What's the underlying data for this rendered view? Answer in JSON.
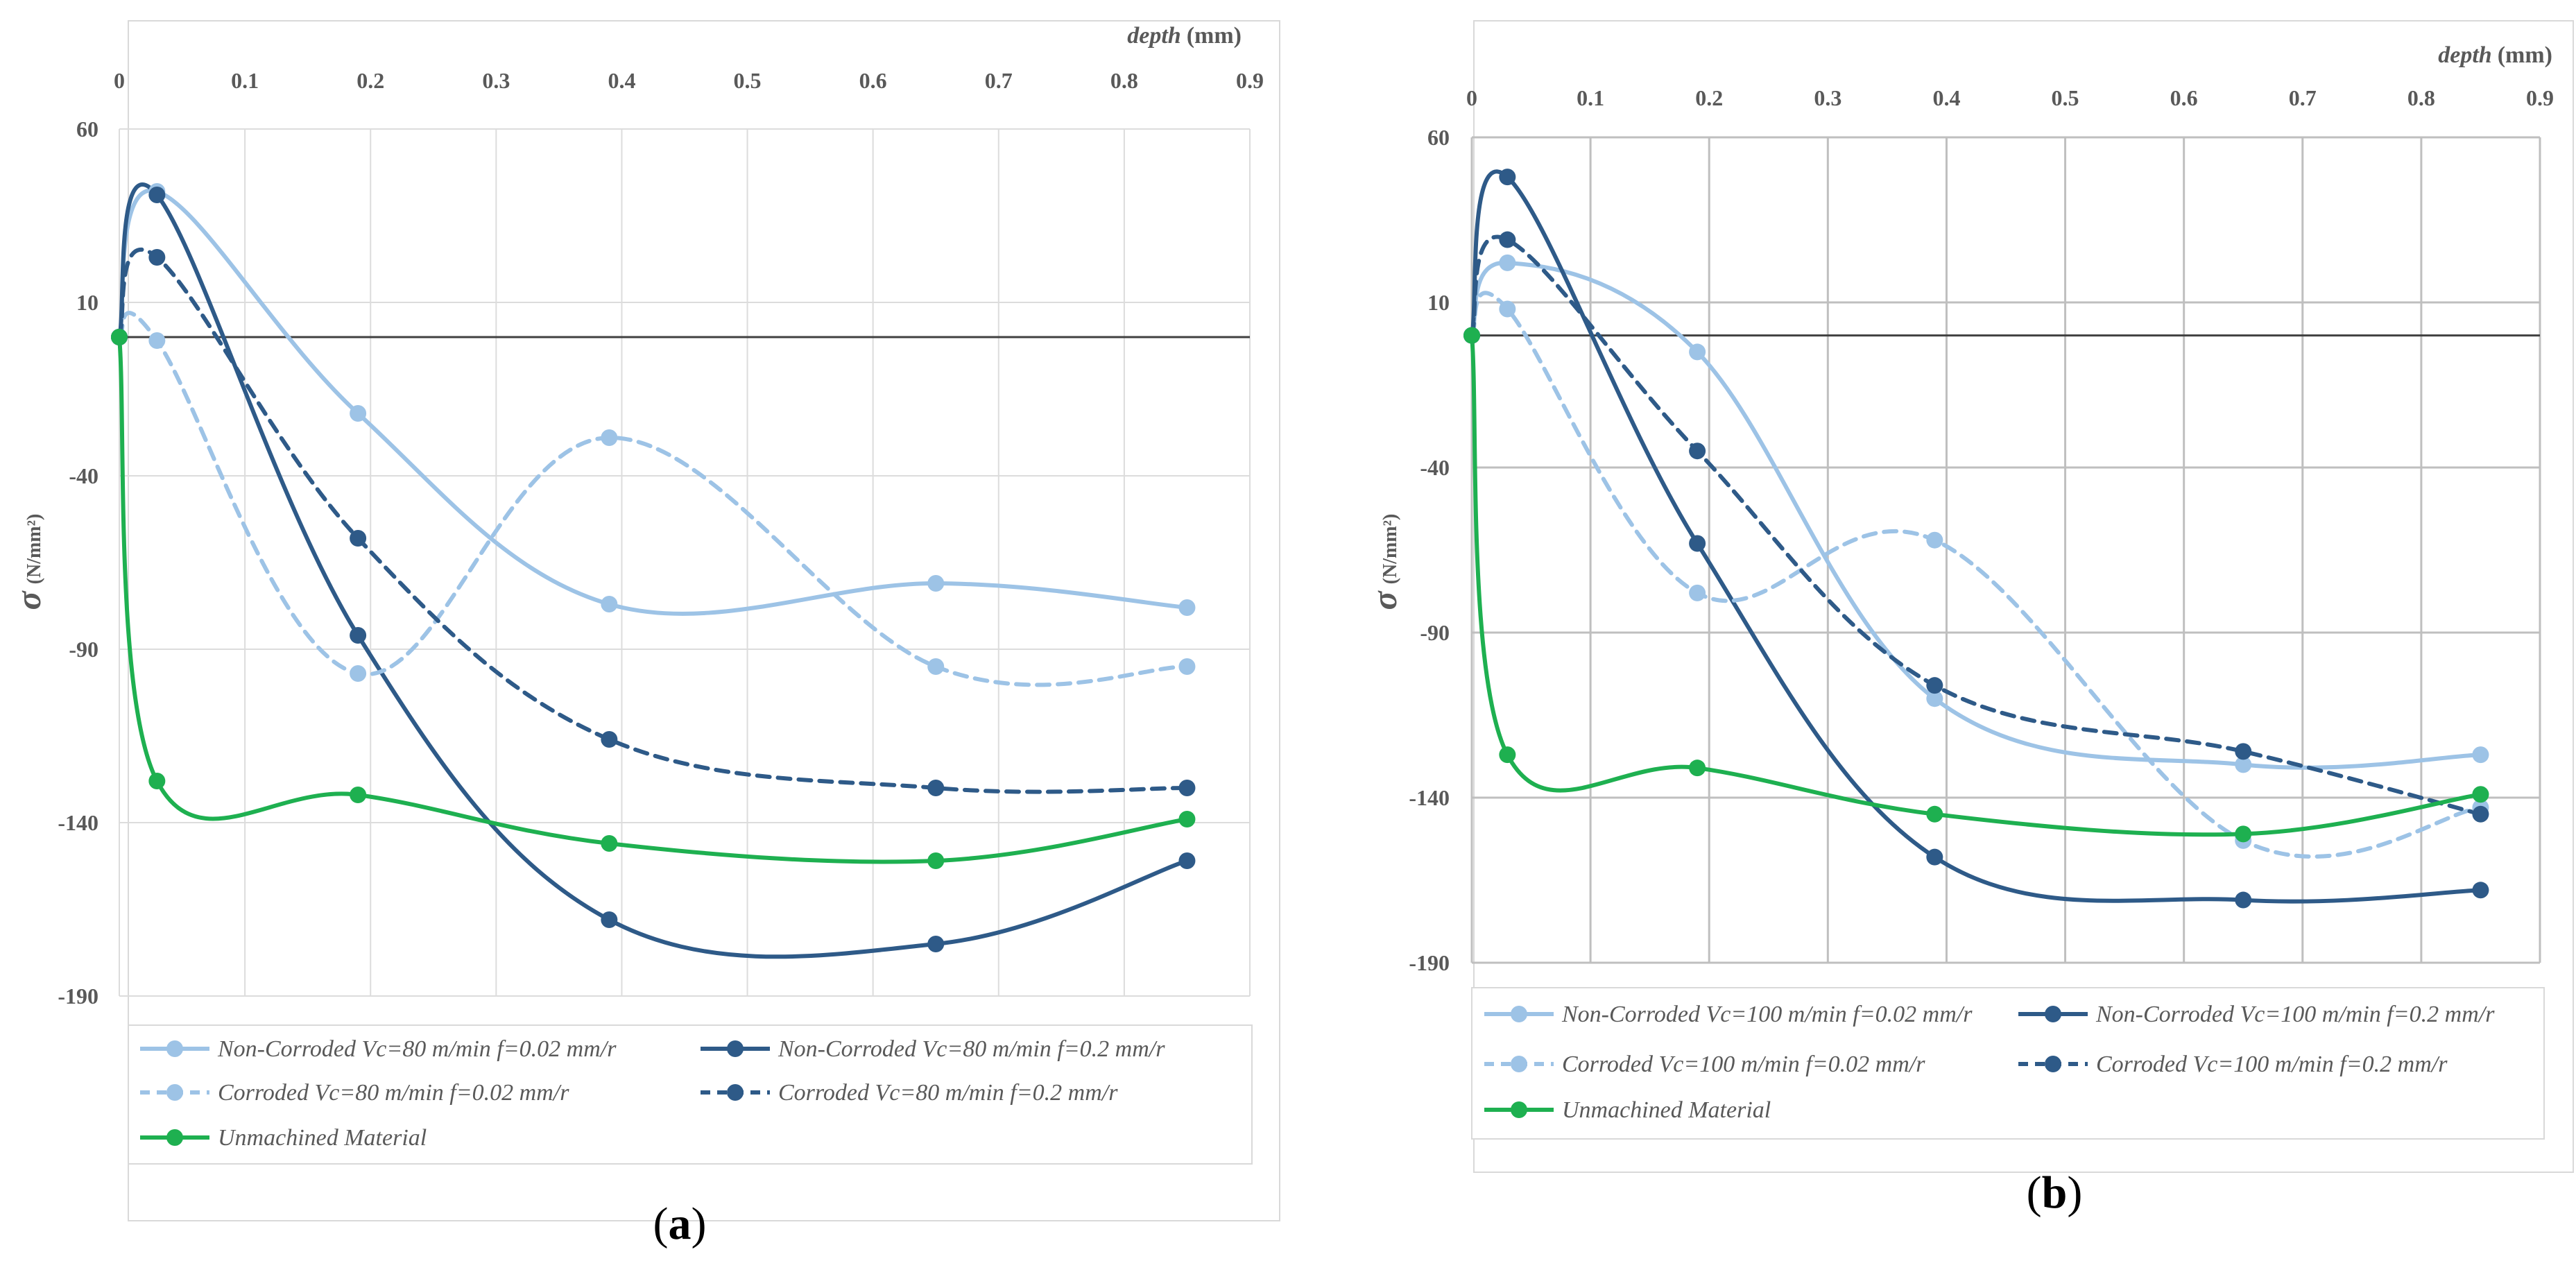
{
  "chart_data": [
    {
      "type": "line",
      "panel_label": "a",
      "xlabel": "depth",
      "xunit": "(mm)",
      "ylabel_symbol": "σ",
      "ylabel_unit": "(N/mm²)",
      "xlim": [
        0,
        0.9
      ],
      "ylim": [
        -190,
        60
      ],
      "xticks": [
        "0",
        "0.1",
        "0.2",
        "0.3",
        "0.4",
        "0.5",
        "0.6",
        "0.7",
        "0.8",
        "0.9"
      ],
      "yticks": [
        "60",
        "10",
        "-40",
        "-90",
        "-140",
        "-190"
      ],
      "grid": true,
      "legend_position": "bottom",
      "series": [
        {
          "name": "Non-Corroded Vc=80 m/min  f=0.02 mm/r",
          "color": "#9dc3e6",
          "dash": false,
          "x": [
            0,
            0.03,
            0.19,
            0.39,
            0.65,
            0.85
          ],
          "y": [
            0,
            42,
            -22,
            -77,
            -71,
            -78
          ]
        },
        {
          "name": "Non-Corroded Vc=80 m/min  f=0.2 mm/r",
          "color": "#2e5a88",
          "dash": false,
          "x": [
            0,
            0.03,
            0.19,
            0.39,
            0.65,
            0.85
          ],
          "y": [
            0,
            41,
            -86,
            -168,
            -175,
            -151
          ]
        },
        {
          "name": "Corroded Vc=80 m/min  f=0.02 mm/r",
          "color": "#9dc3e6",
          "dash": true,
          "x": [
            0,
            0.03,
            0.19,
            0.39,
            0.65,
            0.85
          ],
          "y": [
            0,
            -1,
            -97,
            -29,
            -95,
            -95
          ]
        },
        {
          "name": "Corroded Vc=80 m/min  f=0.2 mm/r",
          "color": "#2e5a88",
          "dash": true,
          "x": [
            0,
            0.03,
            0.19,
            0.39,
            0.65,
            0.85
          ],
          "y": [
            0,
            23,
            -58,
            -116,
            -130,
            -130
          ]
        },
        {
          "name": "Unmachined Material",
          "color": "#1eb050",
          "dash": false,
          "x": [
            0,
            0.03,
            0.19,
            0.39,
            0.65,
            0.85
          ],
          "y": [
            0,
            -128,
            -132,
            -146,
            -151,
            -139
          ]
        }
      ]
    },
    {
      "type": "line",
      "panel_label": "b",
      "xlabel": "depth",
      "xunit": "(mm)",
      "ylabel_symbol": "σ",
      "ylabel_unit": "(N/mm²)",
      "xlim": [
        0,
        0.9
      ],
      "ylim": [
        -190,
        60
      ],
      "xticks": [
        "0",
        "0.1",
        "0.2",
        "0.3",
        "0.4",
        "0.5",
        "0.6",
        "0.7",
        "0.8",
        "0.9"
      ],
      "yticks": [
        "60",
        "10",
        "-40",
        "-90",
        "-140",
        "-190"
      ],
      "grid": true,
      "legend_position": "bottom",
      "series": [
        {
          "name": "Non-Corroded Vc=100 m/min  f=0.02 mm/r",
          "color": "#9dc3e6",
          "dash": false,
          "x": [
            0,
            0.03,
            0.19,
            0.39,
            0.65,
            0.85
          ],
          "y": [
            0,
            22,
            -5,
            -110,
            -130,
            -127
          ]
        },
        {
          "name": "Non-Corroded Vc=100 m/min  f=0.2 mm/r",
          "color": "#2e5a88",
          "dash": false,
          "x": [
            0,
            0.03,
            0.19,
            0.39,
            0.65,
            0.85
          ],
          "y": [
            0,
            48,
            -63,
            -158,
            -171,
            -168
          ]
        },
        {
          "name": "Corroded Vc=100 m/min  f=0.02 mm/r",
          "color": "#9dc3e6",
          "dash": true,
          "x": [
            0,
            0.03,
            0.19,
            0.39,
            0.65,
            0.85
          ],
          "y": [
            0,
            8,
            -78,
            -62,
            -153,
            -143
          ]
        },
        {
          "name": "Corroded Vc=100 m/min  f=0.2 mm/r",
          "color": "#2e5a88",
          "dash": true,
          "x": [
            0,
            0.03,
            0.19,
            0.39,
            0.65,
            0.85
          ],
          "y": [
            0,
            29,
            -35,
            -106,
            -126,
            -145
          ]
        },
        {
          "name": "Unmachined Material",
          "color": "#1eb050",
          "dash": false,
          "x": [
            0,
            0.03,
            0.19,
            0.39,
            0.65,
            0.85
          ],
          "y": [
            0,
            -127,
            -131,
            -145,
            -151,
            -139
          ]
        }
      ]
    }
  ]
}
